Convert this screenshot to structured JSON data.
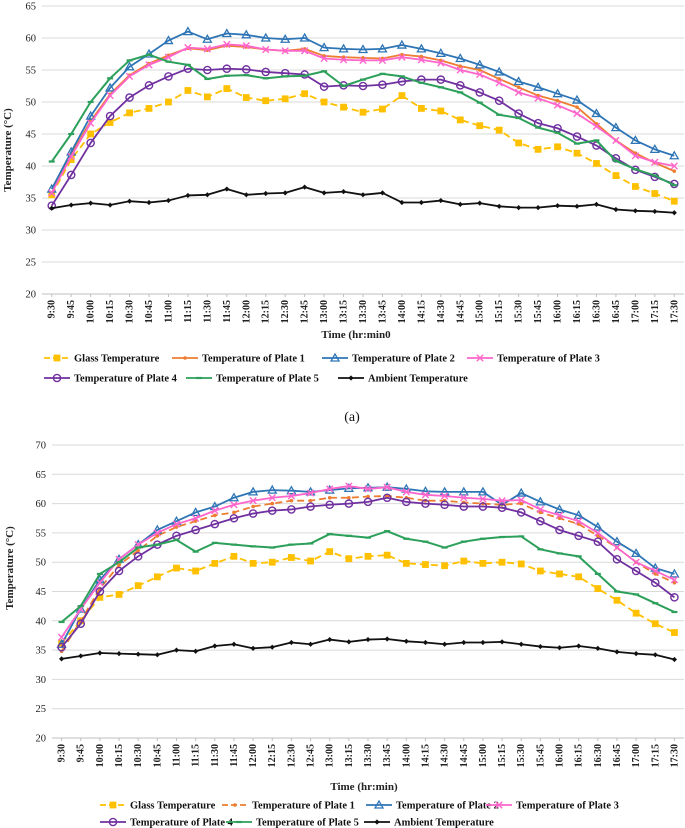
{
  "chart_data": [
    {
      "type": "line",
      "panel_label": "(a)",
      "title": "",
      "xlabel": "Time (hr:min0",
      "ylabel": "Temperature (°C)",
      "ylim": [
        20,
        65
      ],
      "yticks": [
        20,
        25,
        30,
        35,
        40,
        45,
        50,
        55,
        60,
        65
      ],
      "categories": [
        "9:30",
        "9:45",
        "10:00",
        "10:15",
        "10:30",
        "10:45",
        "11:00",
        "11:15",
        "11:30",
        "11:45",
        "12:00",
        "12:15",
        "12:30",
        "12:45",
        "13:00",
        "13:15",
        "13:30",
        "13:45",
        "14:00",
        "14:15",
        "14:30",
        "14:45",
        "15:00",
        "15:15",
        "15:30",
        "15:45",
        "16:00",
        "16:15",
        "16:30",
        "16:45",
        "17:00",
        "17:15",
        "17:30"
      ],
      "series": [
        {
          "name": "Glass Temperature",
          "color": "#FFC000",
          "dashed": true,
          "marker": "square",
          "values": [
            35.5,
            41.0,
            45.0,
            46.8,
            48.3,
            49.0,
            50.0,
            51.8,
            50.8,
            52.1,
            50.7,
            50.2,
            50.5,
            51.3,
            50.0,
            49.2,
            48.4,
            48.9,
            51.0,
            49.0,
            48.6,
            47.2,
            46.3,
            45.6,
            43.6,
            42.6,
            43.0,
            42.0,
            40.4,
            38.5,
            36.8,
            35.7,
            34.5
          ]
        },
        {
          "name": "Temperature of Plate 1",
          "color": "#ED7D31",
          "dashed": false,
          "marker": "dot",
          "values": [
            35.8,
            41.8,
            47.0,
            51.2,
            54.2,
            56.0,
            57.3,
            58.4,
            58.1,
            58.8,
            58.6,
            58.2,
            58.0,
            58.3,
            57.2,
            57.0,
            56.9,
            56.8,
            57.4,
            57.1,
            56.5,
            55.6,
            55.0,
            53.6,
            52.3,
            51.0,
            50.2,
            49.2,
            46.6,
            44.0,
            42.0,
            40.5,
            39.2
          ]
        },
        {
          "name": "Temperature of Plate 2",
          "color": "#2E75B6",
          "dashed": false,
          "marker": "triangle",
          "values": [
            36.4,
            42.2,
            47.8,
            52.2,
            55.5,
            57.5,
            59.6,
            61.0,
            59.8,
            60.7,
            60.5,
            60.0,
            59.8,
            60.0,
            58.5,
            58.3,
            58.2,
            58.3,
            58.9,
            58.3,
            57.6,
            56.8,
            55.8,
            54.7,
            53.2,
            52.3,
            51.3,
            50.3,
            48.2,
            46.0,
            44.0,
            42.6,
            41.6
          ]
        },
        {
          "name": "Temperature of Plate 3",
          "color": "#FF66CC",
          "dashed": false,
          "marker": "x",
          "values": [
            35.8,
            41.5,
            46.7,
            51.0,
            54.0,
            55.8,
            57.0,
            58.5,
            58.3,
            59.0,
            58.8,
            58.2,
            58.0,
            58.0,
            56.8,
            56.6,
            56.5,
            56.5,
            57.0,
            56.6,
            56.1,
            55.0,
            54.3,
            53.0,
            51.5,
            50.6,
            49.5,
            48.2,
            46.2,
            44.0,
            41.6,
            40.6,
            40.0
          ]
        },
        {
          "name": "Temperature of Plate 4",
          "color": "#7030A0",
          "dashed": false,
          "marker": "circle",
          "values": [
            33.8,
            38.6,
            43.6,
            47.8,
            50.7,
            52.6,
            54.0,
            55.2,
            55.0,
            55.2,
            55.1,
            54.7,
            54.5,
            54.3,
            52.4,
            52.6,
            52.5,
            52.7,
            53.2,
            53.5,
            53.5,
            52.6,
            51.5,
            50.2,
            48.2,
            46.7,
            45.9,
            44.6,
            43.2,
            41.2,
            39.4,
            38.3,
            37.2
          ]
        },
        {
          "name": "Temperature of Plate 5",
          "color": "#2CA05A",
          "dashed": false,
          "marker": "dash",
          "values": [
            40.7,
            45.0,
            50.0,
            53.7,
            56.5,
            57.4,
            56.3,
            55.8,
            53.6,
            54.1,
            54.2,
            53.7,
            54.0,
            54.1,
            54.8,
            52.5,
            53.5,
            54.4,
            54.0,
            53.0,
            52.3,
            51.5,
            49.9,
            48.0,
            47.5,
            46.0,
            45.2,
            43.5,
            44.0,
            40.8,
            39.5,
            38.5,
            37.0
          ]
        },
        {
          "name": "Ambient Temperature",
          "color": "#111111",
          "dashed": false,
          "marker": "diamond",
          "values": [
            33.4,
            33.9,
            34.2,
            33.9,
            34.5,
            34.3,
            34.6,
            35.4,
            35.5,
            36.4,
            35.5,
            35.7,
            35.8,
            36.7,
            35.8,
            36.0,
            35.5,
            35.8,
            34.3,
            34.3,
            34.6,
            34.0,
            34.2,
            33.7,
            33.5,
            33.5,
            33.8,
            33.7,
            34.0,
            33.2,
            33.0,
            32.9,
            32.7
          ]
        }
      ],
      "legend": [
        "Glass Temperature",
        "Temperature of Plate 1",
        "Temperature of Plate 2",
        "Temperature of Plate 3",
        "Temperature of Plate 4",
        "Temperature of Plate 5",
        "Ambient Temperature"
      ],
      "legend_position": "bottom",
      "grid": "horizontal"
    },
    {
      "type": "line",
      "panel_label": "",
      "title": "",
      "xlabel": "Time (hr:min)",
      "ylabel": "Temperature (°C)",
      "ylim": [
        20,
        70
      ],
      "yticks": [
        20,
        25,
        30,
        35,
        40,
        45,
        50,
        55,
        60,
        65,
        70
      ],
      "categories": [
        "9:30",
        "9:45",
        "10:00",
        "10:15",
        "10:30",
        "10:45",
        "11:00",
        "11:15",
        "11:30",
        "11:45",
        "12:00",
        "12:15",
        "12:30",
        "12:45",
        "13:00",
        "13:15",
        "13:30",
        "13:45",
        "14:00",
        "14:15",
        "14:30",
        "14:45",
        "15:00",
        "15:15",
        "15:30",
        "15:45",
        "16:00",
        "16:15",
        "16:30",
        "16:45",
        "17:00",
        "17:15",
        "17:30"
      ],
      "series": [
        {
          "name": "Glass Temperature",
          "color": "#FFC000",
          "dashed": true,
          "marker": "square",
          "values": [
            36.2,
            40.0,
            44.0,
            44.5,
            46.0,
            47.5,
            49.0,
            48.5,
            49.8,
            51.0,
            49.8,
            50.0,
            50.8,
            50.2,
            51.8,
            50.6,
            51.0,
            51.2,
            49.8,
            49.6,
            49.4,
            50.2,
            49.8,
            50.0,
            49.7,
            48.5,
            48.0,
            47.5,
            45.5,
            43.5,
            41.3,
            39.5,
            38.0
          ]
        },
        {
          "name": "Temperature of Plate 1",
          "color": "#ED7D31",
          "dashed": true,
          "marker": "dot",
          "values": [
            34.8,
            40.0,
            45.5,
            49.5,
            52.0,
            54.5,
            56.0,
            57.0,
            58.0,
            58.5,
            59.5,
            60.0,
            60.5,
            60.5,
            61.0,
            61.0,
            61.2,
            61.3,
            61.0,
            60.5,
            60.5,
            60.2,
            60.0,
            59.8,
            60.0,
            58.5,
            57.5,
            56.5,
            54.5,
            52.5,
            50.0,
            48.0,
            46.5
          ]
        },
        {
          "name": "Temperature of Plate 2",
          "color": "#2E75B6",
          "dashed": false,
          "marker": "triangle",
          "values": [
            36.0,
            42.0,
            47.0,
            50.5,
            53.0,
            55.5,
            57.0,
            58.5,
            59.5,
            61.0,
            62.0,
            62.3,
            62.2,
            62.0,
            62.3,
            62.6,
            62.7,
            62.8,
            62.5,
            62.1,
            62.0,
            62.0,
            62.0,
            59.8,
            61.8,
            60.3,
            59.0,
            58.0,
            56.0,
            53.5,
            51.5,
            49.0,
            48.0
          ]
        },
        {
          "name": "Temperature of Plate 3",
          "color": "#FF66CC",
          "dashed": false,
          "marker": "x",
          "values": [
            37.2,
            42.0,
            46.5,
            50.5,
            53.0,
            55.0,
            56.5,
            57.5,
            58.8,
            59.8,
            60.5,
            61.0,
            61.3,
            61.8,
            62.5,
            63.0,
            62.5,
            62.8,
            62.0,
            61.5,
            61.3,
            61.0,
            60.8,
            60.5,
            60.6,
            59.0,
            58.0,
            57.0,
            55.0,
            52.5,
            50.0,
            48.5,
            47.0
          ]
        },
        {
          "name": "Temperature of Plate 4",
          "color": "#7030A0",
          "dashed": false,
          "marker": "circle",
          "values": [
            35.5,
            39.5,
            45.0,
            48.5,
            51.0,
            53.0,
            54.5,
            55.5,
            56.5,
            57.5,
            58.3,
            58.8,
            59.0,
            59.5,
            59.8,
            60.0,
            60.3,
            61.0,
            60.3,
            60.0,
            59.8,
            59.5,
            59.5,
            59.3,
            58.5,
            57.0,
            55.5,
            54.5,
            53.5,
            50.5,
            48.5,
            46.5,
            44.0
          ]
        },
        {
          "name": "Temperature of Plate 5",
          "color": "#2CA05A",
          "dashed": false,
          "marker": "dash",
          "values": [
            39.8,
            42.5,
            48.0,
            50.0,
            52.5,
            53.0,
            53.8,
            51.8,
            53.3,
            53.0,
            52.7,
            52.5,
            53.0,
            53.2,
            54.8,
            54.5,
            54.2,
            55.3,
            54.0,
            53.5,
            52.5,
            53.5,
            54.0,
            54.3,
            54.4,
            52.2,
            51.5,
            51.0,
            48.0,
            45.0,
            44.5,
            43.0,
            41.5
          ]
        },
        {
          "name": "Ambient Temperature",
          "color": "#111111",
          "dashed": false,
          "marker": "diamond",
          "values": [
            33.5,
            34.0,
            34.5,
            34.4,
            34.3,
            34.2,
            35.0,
            34.8,
            35.7,
            36.0,
            35.3,
            35.5,
            36.3,
            36.0,
            36.8,
            36.4,
            36.8,
            36.9,
            36.5,
            36.3,
            36.0,
            36.3,
            36.3,
            36.4,
            36.0,
            35.6,
            35.4,
            35.7,
            35.3,
            34.7,
            34.4,
            34.2,
            33.4
          ]
        }
      ],
      "legend": [
        "Glass Temperature",
        "Temperature of Plate 1",
        "Temperature of Plate 2",
        "Temperature of Plate 3",
        "Temperature of Plate 4",
        "Temperature of Plate 5",
        "Ambient Temperature"
      ],
      "legend_position": "bottom",
      "grid": "horizontal"
    }
  ]
}
